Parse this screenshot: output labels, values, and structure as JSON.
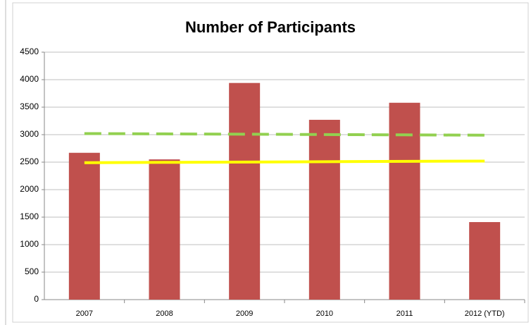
{
  "chart_data": {
    "type": "bar",
    "title": "Number of Participants",
    "categories": [
      "2007",
      "2008",
      "2009",
      "2010",
      "2011",
      "2012 (YTD)"
    ],
    "series": [
      {
        "type": "bar",
        "color": "#c0504d",
        "values": [
          2670,
          2550,
          3940,
          3270,
          3580,
          1410
        ]
      },
      {
        "type": "line",
        "dashed": true,
        "color": "#92d050",
        "values": [
          3020,
          3014,
          3008,
          3002,
          2996,
          2990
        ]
      },
      {
        "type": "line",
        "dashed": false,
        "color": "#ffff00",
        "values": [
          2490,
          2496,
          2502,
          2508,
          2514,
          2520
        ]
      }
    ],
    "ylim": [
      0,
      4500
    ],
    "yticks": [
      0,
      500,
      1000,
      1500,
      2000,
      2500,
      3000,
      3500,
      4000,
      4500
    ],
    "grid": true
  }
}
